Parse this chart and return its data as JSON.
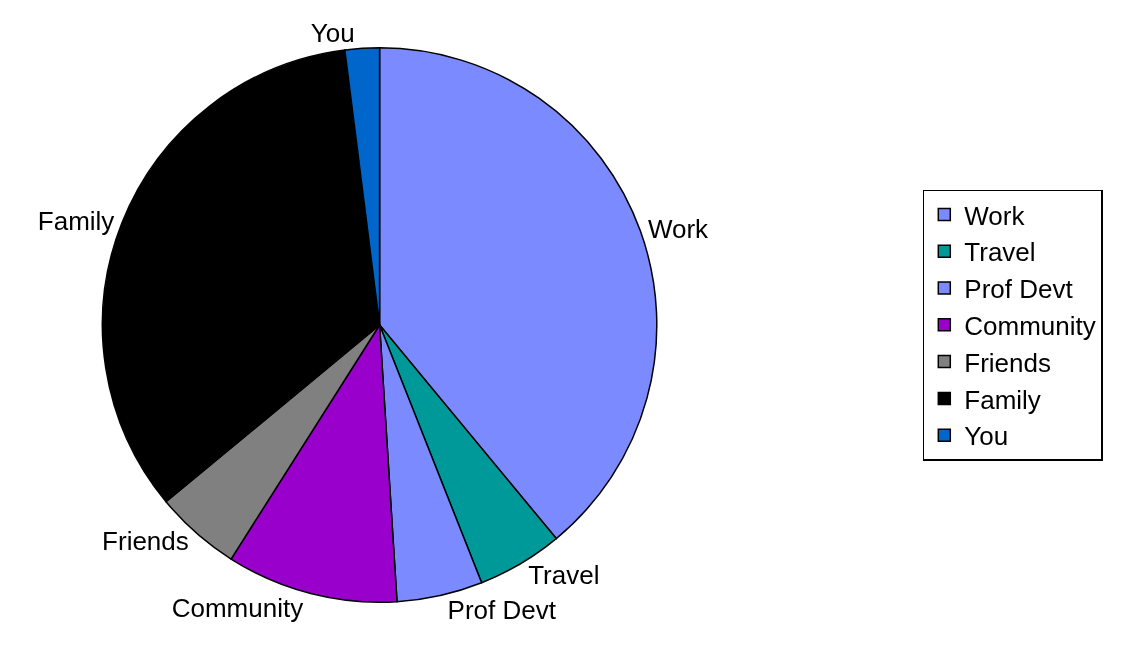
{
  "chart_data": {
    "type": "pie",
    "categories": [
      "Work",
      "Travel",
      "Prof Devt",
      "Community",
      "Friends",
      "Family",
      "You"
    ],
    "values": [
      39,
      5,
      5,
      10,
      5,
      34,
      2
    ],
    "colors": [
      "#7b8bff",
      "#009999",
      "#7b8bff",
      "#9900cc",
      "#808080",
      "#000000",
      "#0066cc"
    ],
    "legend": "right"
  }
}
